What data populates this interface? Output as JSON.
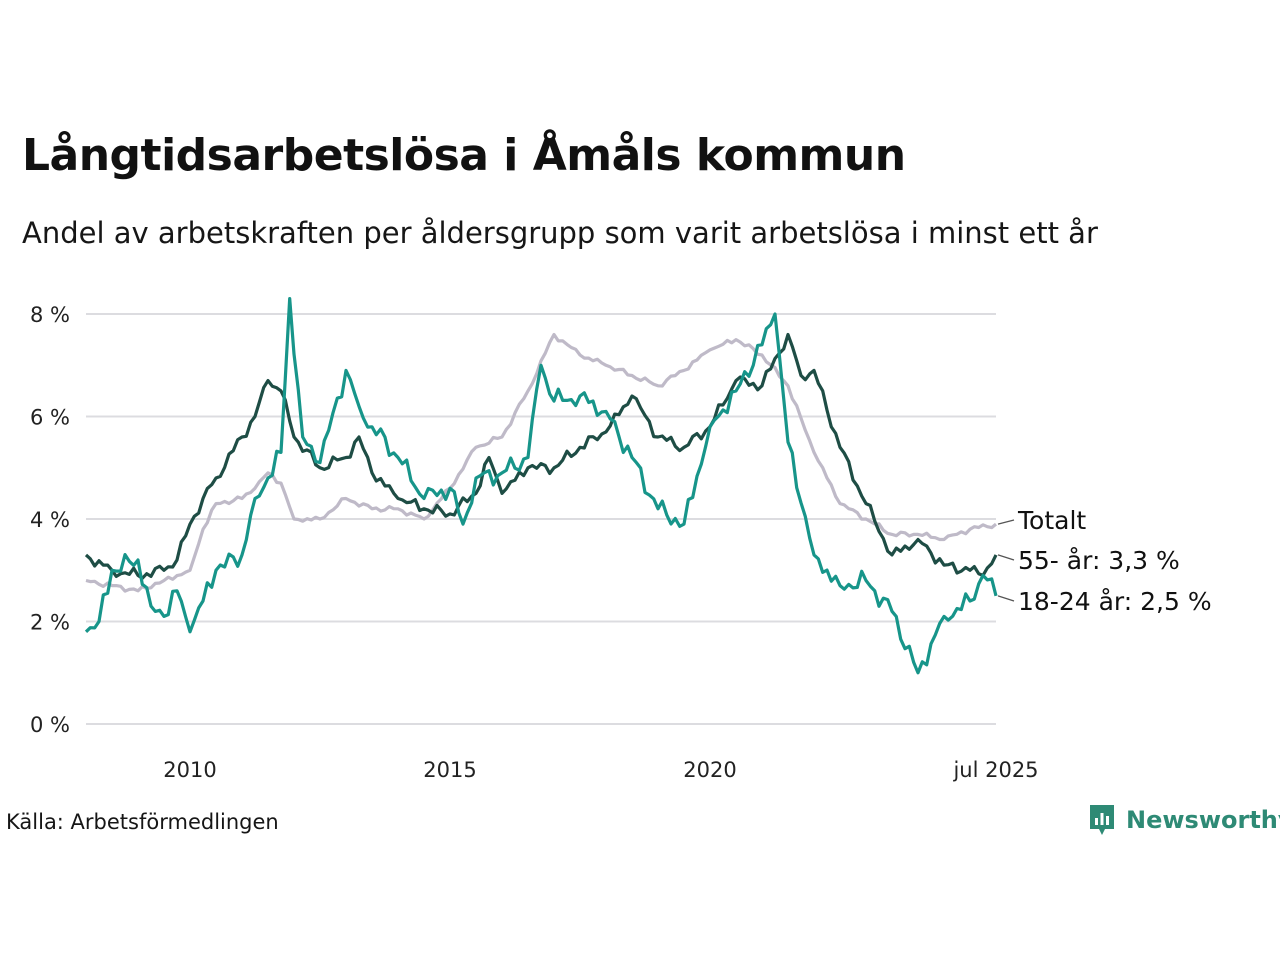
{
  "title": "Långtidsarbetslösa i Åmåls kommun",
  "subtitle": "Andel av arbetskraften per åldersgrupp som varit arbetslösa i minst ett år",
  "source": "Källa: Arbetsförmedlingen",
  "brand": "Newsworthy",
  "colors": {
    "total": "#bfbac8",
    "age55": "#1e4d45",
    "age1824": "#17958a",
    "grid": "#dcdce0",
    "brand": "#2e8a75"
  },
  "chart_data": {
    "type": "line",
    "title": "Långtidsarbetslösa i Åmåls kommun",
    "subtitle": "Andel av arbetskraften per åldersgrupp som varit arbetslösa i minst ett år",
    "ylim": [
      0,
      8
    ],
    "y_ticks": [
      0,
      2,
      4,
      6,
      8
    ],
    "y_tick_labels": [
      "0 %",
      "2 %",
      "4 %",
      "6 %",
      "8 %"
    ],
    "x_ticks": [
      "2010",
      "2015",
      "2020",
      "jul 2025"
    ],
    "x_range": [
      "2008-01",
      "2025-07"
    ],
    "grid": "horizontal",
    "legend": "end-labels",
    "series": [
      {
        "name": "Totalt",
        "end_label": "Totalt",
        "color_key": "total",
        "points": [
          [
            "2008-01",
            2.8
          ],
          [
            "2008-07",
            2.7
          ],
          [
            "2009-01",
            2.6
          ],
          [
            "2009-07",
            2.8
          ],
          [
            "2010-01",
            3.0
          ],
          [
            "2010-04",
            3.8
          ],
          [
            "2010-07",
            4.3
          ],
          [
            "2011-01",
            4.4
          ],
          [
            "2011-04",
            4.6
          ],
          [
            "2011-07",
            4.9
          ],
          [
            "2011-10",
            4.7
          ],
          [
            "2012-01",
            4.0
          ],
          [
            "2012-07",
            4.0
          ],
          [
            "2013-01",
            4.4
          ],
          [
            "2013-07",
            4.2
          ],
          [
            "2014-01",
            4.2
          ],
          [
            "2014-07",
            4.0
          ],
          [
            "2015-01",
            4.6
          ],
          [
            "2015-07",
            5.4
          ],
          [
            "2016-01",
            5.6
          ],
          [
            "2016-07",
            6.5
          ],
          [
            "2017-01",
            7.6
          ],
          [
            "2017-07",
            7.2
          ],
          [
            "2018-01",
            7.0
          ],
          [
            "2018-07",
            6.8
          ],
          [
            "2019-01",
            6.6
          ],
          [
            "2019-07",
            6.9
          ],
          [
            "2020-01",
            7.3
          ],
          [
            "2020-07",
            7.5
          ],
          [
            "2021-01",
            7.2
          ],
          [
            "2021-07",
            6.6
          ],
          [
            "2022-01",
            5.3
          ],
          [
            "2022-07",
            4.3
          ],
          [
            "2023-01",
            4.0
          ],
          [
            "2023-07",
            3.7
          ],
          [
            "2024-01",
            3.7
          ],
          [
            "2024-07",
            3.6
          ],
          [
            "2025-01",
            3.8
          ],
          [
            "2025-07",
            3.9
          ]
        ]
      },
      {
        "name": "55- år",
        "end_label": "55- år: 3,3 %",
        "color_key": "age55",
        "points": [
          [
            "2008-01",
            3.3
          ],
          [
            "2008-07",
            3.0
          ],
          [
            "2009-01",
            2.9
          ],
          [
            "2009-07",
            3.0
          ],
          [
            "2009-10",
            3.2
          ],
          [
            "2010-01",
            3.9
          ],
          [
            "2010-04",
            4.4
          ],
          [
            "2010-07",
            4.8
          ],
          [
            "2011-01",
            5.6
          ],
          [
            "2011-04",
            6.0
          ],
          [
            "2011-07",
            6.7
          ],
          [
            "2011-10",
            6.5
          ],
          [
            "2012-01",
            5.6
          ],
          [
            "2012-07",
            5.0
          ],
          [
            "2013-01",
            5.2
          ],
          [
            "2013-04",
            5.6
          ],
          [
            "2013-07",
            4.9
          ],
          [
            "2014-01",
            4.4
          ],
          [
            "2014-07",
            4.2
          ],
          [
            "2015-01",
            4.1
          ],
          [
            "2015-07",
            4.5
          ],
          [
            "2015-10",
            5.2
          ],
          [
            "2016-01",
            4.5
          ],
          [
            "2016-07",
            5.0
          ],
          [
            "2017-01",
            5.0
          ],
          [
            "2017-07",
            5.4
          ],
          [
            "2018-01",
            5.7
          ],
          [
            "2018-07",
            6.4
          ],
          [
            "2019-01",
            5.6
          ],
          [
            "2019-07",
            5.4
          ],
          [
            "2020-01",
            5.8
          ],
          [
            "2020-07",
            6.7
          ],
          [
            "2021-01",
            6.6
          ],
          [
            "2021-07",
            7.6
          ],
          [
            "2021-10",
            6.8
          ],
          [
            "2022-01",
            6.9
          ],
          [
            "2022-07",
            5.4
          ],
          [
            "2023-01",
            4.3
          ],
          [
            "2023-07",
            3.3
          ],
          [
            "2024-01",
            3.6
          ],
          [
            "2024-07",
            3.1
          ],
          [
            "2025-01",
            3.0
          ],
          [
            "2025-04",
            2.9
          ],
          [
            "2025-07",
            3.3
          ]
        ]
      },
      {
        "name": "18-24 år",
        "end_label": "18-24 år: 2,5 %",
        "color_key": "age1824",
        "points": [
          [
            "2008-01",
            1.8
          ],
          [
            "2008-04",
            2.0
          ],
          [
            "2008-07",
            3.0
          ],
          [
            "2009-01",
            3.2
          ],
          [
            "2009-04",
            2.3
          ],
          [
            "2009-07",
            2.1
          ],
          [
            "2009-10",
            2.6
          ],
          [
            "2010-01",
            1.8
          ],
          [
            "2010-04",
            2.4
          ],
          [
            "2010-07",
            3.0
          ],
          [
            "2011-01",
            3.3
          ],
          [
            "2011-04",
            4.4
          ],
          [
            "2011-07",
            4.8
          ],
          [
            "2011-10",
            5.3
          ],
          [
            "2011-12",
            8.3
          ],
          [
            "2012-03",
            5.6
          ],
          [
            "2012-07",
            5.1
          ],
          [
            "2013-01",
            6.9
          ],
          [
            "2013-04",
            6.2
          ],
          [
            "2013-07",
            5.8
          ],
          [
            "2014-01",
            5.2
          ],
          [
            "2014-07",
            4.4
          ],
          [
            "2015-01",
            4.6
          ],
          [
            "2015-04",
            3.9
          ],
          [
            "2015-07",
            4.8
          ],
          [
            "2016-01",
            4.9
          ],
          [
            "2016-07",
            5.2
          ],
          [
            "2016-10",
            7.0
          ],
          [
            "2017-01",
            6.3
          ],
          [
            "2017-07",
            6.4
          ],
          [
            "2018-01",
            6.1
          ],
          [
            "2018-07",
            5.2
          ],
          [
            "2019-01",
            4.2
          ],
          [
            "2019-07",
            3.9
          ],
          [
            "2020-01",
            5.8
          ],
          [
            "2020-07",
            6.5
          ],
          [
            "2021-01",
            7.4
          ],
          [
            "2021-04",
            8.0
          ],
          [
            "2021-07",
            5.5
          ],
          [
            "2022-01",
            3.3
          ],
          [
            "2022-07",
            2.7
          ],
          [
            "2023-01",
            2.8
          ],
          [
            "2023-07",
            2.2
          ],
          [
            "2024-01",
            1.0
          ],
          [
            "2024-07",
            2.1
          ],
          [
            "2025-01",
            2.4
          ],
          [
            "2025-04",
            2.9
          ],
          [
            "2025-07",
            2.5
          ]
        ]
      }
    ]
  }
}
